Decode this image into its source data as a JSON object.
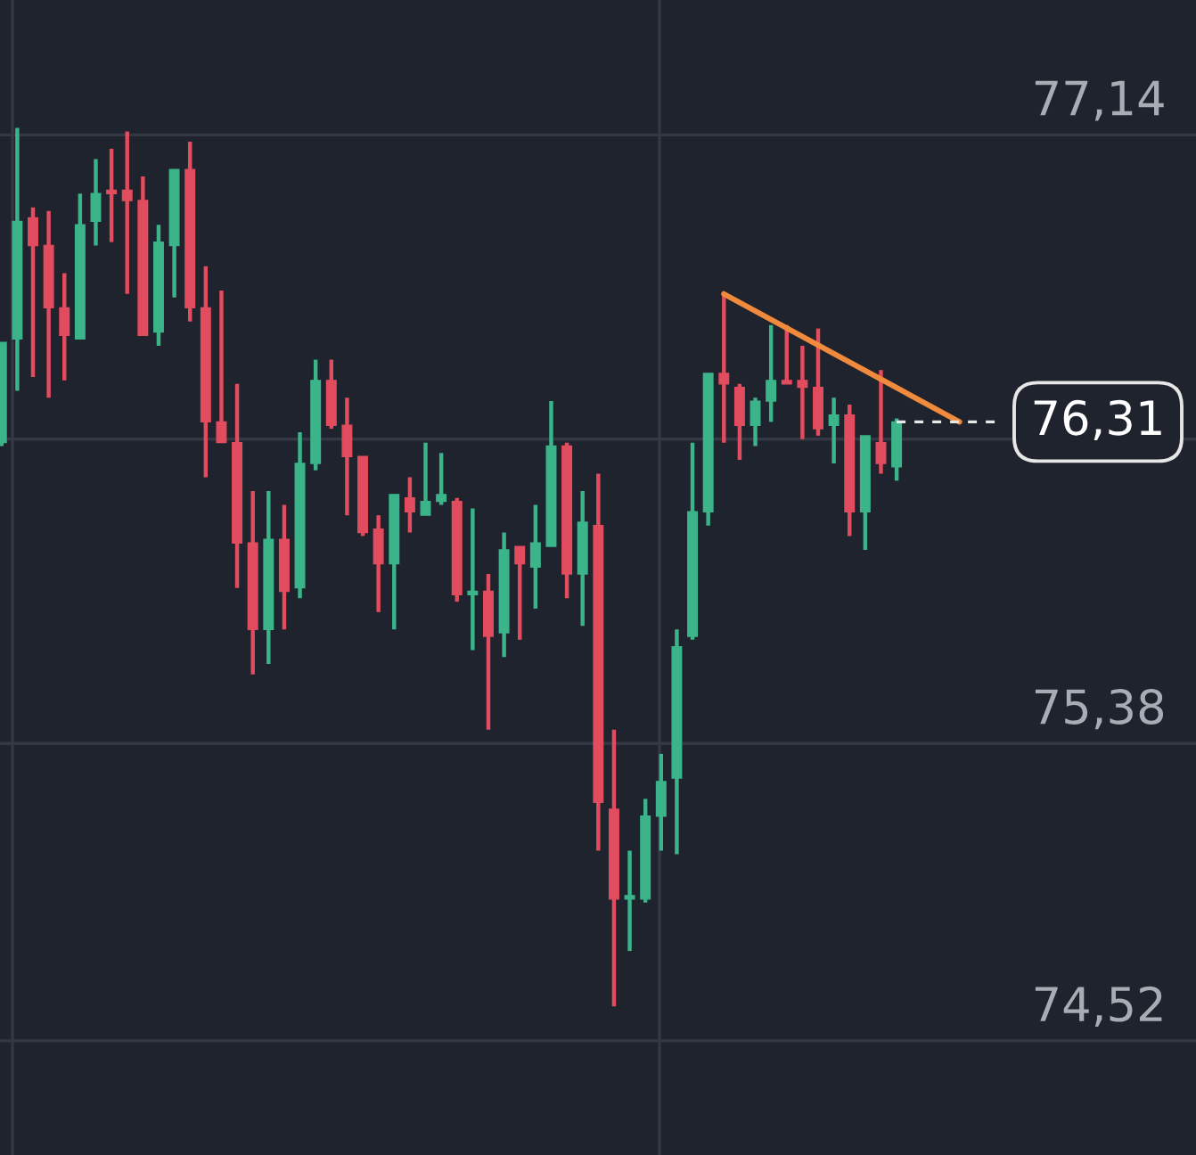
{
  "chart_data": {
    "type": "candlestick",
    "categories": [
      null,
      null,
      null,
      null,
      null,
      null,
      null,
      null,
      null,
      null,
      null,
      null,
      null,
      null,
      null,
      null,
      null,
      null,
      null,
      null,
      null,
      null,
      null,
      null,
      null,
      null,
      null,
      null,
      null,
      null,
      null,
      null,
      null,
      null,
      null,
      null,
      null,
      null,
      null,
      null,
      null,
      null,
      null,
      null,
      null,
      null,
      null,
      null,
      null,
      null,
      null,
      null,
      null,
      null,
      null,
      null,
      null,
      null,
      null,
      null,
      null,
      null
    ],
    "ohlc": [
      [
        76.25,
        76.54,
        76.24,
        76.54
      ],
      [
        76.55,
        77.16,
        76.4,
        76.89
      ],
      [
        76.9,
        76.93,
        76.44,
        76.82
      ],
      [
        76.82,
        76.92,
        76.38,
        76.64
      ],
      [
        76.64,
        76.74,
        76.43,
        76.56
      ],
      [
        76.55,
        76.97,
        76.55,
        76.88
      ],
      [
        76.89,
        77.07,
        76.82,
        76.97
      ],
      [
        76.98,
        77.1,
        76.83,
        76.97
      ],
      [
        76.98,
        77.15,
        76.68,
        76.95
      ],
      [
        76.95,
        77.02,
        76.56,
        76.56
      ],
      [
        76.57,
        76.88,
        76.53,
        76.83
      ],
      [
        76.82,
        77.04,
        76.67,
        77.04
      ],
      [
        77.04,
        77.12,
        76.6,
        76.64
      ],
      [
        76.64,
        76.76,
        76.15,
        76.31
      ],
      [
        76.31,
        76.69,
        76.25,
        76.25
      ],
      [
        76.25,
        76.42,
        75.83,
        75.96
      ],
      [
        75.96,
        76.11,
        75.58,
        75.71
      ],
      [
        75.71,
        76.11,
        75.61,
        75.97
      ],
      [
        75.97,
        76.07,
        75.71,
        75.82
      ],
      [
        75.83,
        76.28,
        75.8,
        76.19
      ],
      [
        76.19,
        76.49,
        76.17,
        76.43
      ],
      [
        76.43,
        76.49,
        76.29,
        76.3
      ],
      [
        76.3,
        76.38,
        76.04,
        76.21
      ],
      [
        76.21,
        76.21,
        75.98,
        75.99
      ],
      [
        76.0,
        76.04,
        75.76,
        75.9
      ],
      [
        75.9,
        76.1,
        75.71,
        76.1
      ],
      [
        76.09,
        76.15,
        75.99,
        76.05
      ],
      [
        76.04,
        76.25,
        76.04,
        76.08
      ],
      [
        76.08,
        76.22,
        76.07,
        76.1
      ],
      [
        76.08,
        76.09,
        75.79,
        75.81
      ],
      [
        75.81,
        76.06,
        75.65,
        75.82
      ],
      [
        75.82,
        75.87,
        75.42,
        75.69
      ],
      [
        75.7,
        75.99,
        75.63,
        75.94
      ],
      [
        75.95,
        75.95,
        75.68,
        75.9
      ],
      [
        75.89,
        76.07,
        75.77,
        75.96
      ],
      [
        75.95,
        76.37,
        75.95,
        76.24
      ],
      [
        76.24,
        76.25,
        75.8,
        75.87
      ],
      [
        75.87,
        76.11,
        75.72,
        76.02
      ],
      [
        76.01,
        76.16,
        75.07,
        75.21
      ],
      [
        75.19,
        75.42,
        74.62,
        74.93
      ],
      [
        74.93,
        75.07,
        74.78,
        74.94
      ],
      [
        74.93,
        75.22,
        74.92,
        75.17
      ],
      [
        75.17,
        75.35,
        75.07,
        75.27
      ],
      [
        75.28,
        75.71,
        75.06,
        75.66
      ],
      [
        75.69,
        76.25,
        75.68,
        76.05
      ],
      [
        76.05,
        76.45,
        76.01,
        76.45
      ],
      [
        76.45,
        76.68,
        76.25,
        76.42
      ],
      [
        76.41,
        76.42,
        76.2,
        76.3
      ],
      [
        76.3,
        76.38,
        76.24,
        76.37
      ],
      [
        76.37,
        76.59,
        76.31,
        76.43
      ],
      [
        76.43,
        76.59,
        76.42,
        76.42
      ],
      [
        76.43,
        76.53,
        76.26,
        76.41
      ],
      [
        76.41,
        76.58,
        76.27,
        76.29
      ],
      [
        76.3,
        76.38,
        76.19,
        76.33
      ],
      [
        76.33,
        76.36,
        75.98,
        76.05
      ],
      [
        76.05,
        76.27,
        75.94,
        76.27
      ],
      [
        76.25,
        76.46,
        76.16,
        76.19
      ],
      [
        76.18,
        76.32,
        76.14,
        76.31
      ],
      null,
      null,
      null,
      null
    ],
    "series": [
      {
        "type": "line",
        "values": [
          null,
          null,
          null,
          null,
          null,
          null,
          null,
          null,
          null,
          null,
          null,
          null,
          null,
          null,
          null,
          null,
          null,
          null,
          null,
          null,
          null,
          null,
          null,
          null,
          null,
          null,
          null,
          null,
          null,
          null,
          null,
          null,
          null,
          null,
          null,
          null,
          null,
          null,
          null,
          null,
          null,
          null,
          null,
          null,
          null,
          null,
          76.68,
          null,
          null,
          null,
          null,
          null,
          null,
          null,
          null,
          null,
          null,
          null,
          null,
          null,
          null,
          76.31
        ],
        "color": "#f08a3c"
      }
    ],
    "ylim": [
      74.19,
      77.53
    ],
    "yticks": [
      {
        "value": 77.14,
        "label": "77,14"
      },
      {
        "value": 76.26,
        "label": null
      },
      {
        "value": 75.38,
        "label": "75,38"
      },
      {
        "value": 74.52,
        "label": "74,52"
      }
    ],
    "grid": "y",
    "tick_labels": "y",
    "ref_lines": [
      {
        "axis": "y",
        "value": 76.31,
        "label": "76,31",
        "color": "#e6e6e6",
        "line_style": "dashed"
      }
    ]
  }
}
